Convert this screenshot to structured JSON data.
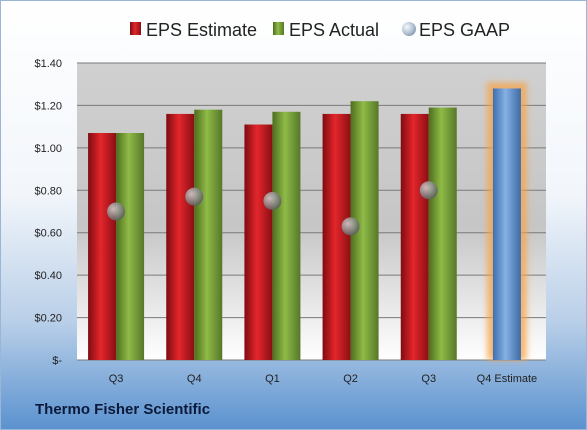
{
  "chart_data": {
    "type": "bar",
    "categories": [
      "Q3",
      "Q4",
      "Q1",
      "Q2",
      "Q3",
      "Q4 Estimate"
    ],
    "series": [
      {
        "name": "EPS Estimate",
        "color": "#c8191f",
        "values": [
          1.07,
          1.16,
          1.11,
          1.16,
          1.16,
          null
        ]
      },
      {
        "name": "EPS Actual",
        "color": "#7fa83c",
        "values": [
          1.07,
          1.18,
          1.17,
          1.22,
          1.19,
          null
        ]
      },
      {
        "name": "EPS GAAP",
        "color": "#8a8a8a",
        "marker": "circle",
        "values": [
          0.7,
          0.77,
          0.75,
          0.63,
          0.8,
          null
        ]
      },
      {
        "name": "",
        "color": "#5b8fd0",
        "highlight": "#f6a44a",
        "values": [
          null,
          null,
          null,
          null,
          null,
          1.28
        ]
      }
    ],
    "ylim": [
      0,
      1.4
    ],
    "ytick_values": [
      0,
      0.2,
      0.4,
      0.6,
      0.8,
      1.0,
      1.2,
      1.4
    ],
    "ytick_labels": [
      "$-",
      "$0.20",
      "$0.40",
      "$0.60",
      "$0.80",
      "$1.00",
      "$1.20",
      "$1.40"
    ],
    "grid": true,
    "legend": "top",
    "title": "",
    "xlabel": "",
    "ylabel": ""
  },
  "company": "Thermo Fisher Scientific"
}
